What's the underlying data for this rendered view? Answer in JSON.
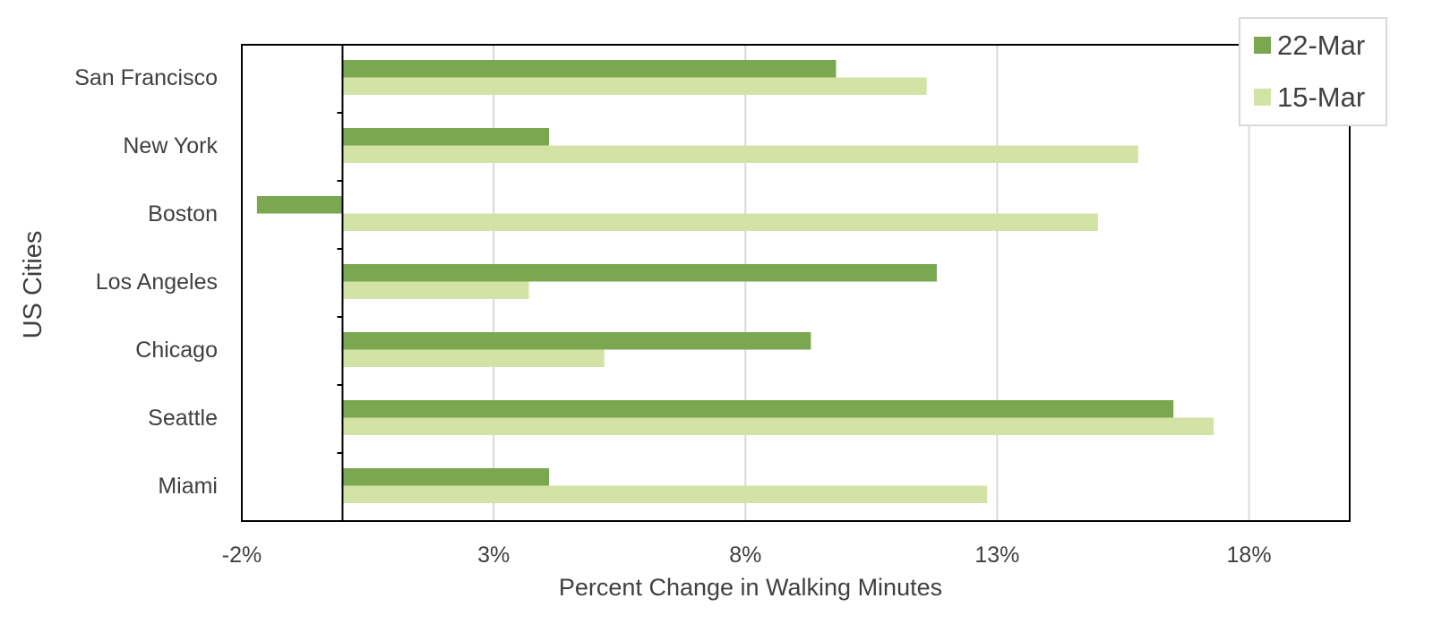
{
  "chart_data": {
    "type": "bar",
    "orientation": "horizontal",
    "categories": [
      "San Francisco",
      "New York",
      "Boston",
      "Los Angeles",
      "Chicago",
      "Seattle",
      "Miami"
    ],
    "series": [
      {
        "name": "22-Mar",
        "color": "#7aa750",
        "values": [
          9.8,
          4.1,
          -1.7,
          11.8,
          9.3,
          16.5,
          4.1
        ]
      },
      {
        "name": "15-Mar",
        "color": "#d3e3a6",
        "values": [
          11.6,
          15.8,
          15.0,
          3.7,
          5.2,
          17.3,
          12.8
        ]
      }
    ],
    "xlabel": "Percent Change in Walking Minutes",
    "ylabel": "US Cities",
    "xlim": [
      -2,
      20
    ],
    "xticks": [
      -2,
      3,
      8,
      13,
      18
    ],
    "xtick_labels": [
      "-2%",
      "3%",
      "8%",
      "13%",
      "18%"
    ],
    "grid": "vertical",
    "legend_position": "top-right",
    "colors": {
      "series_22_mar": "#7aa750",
      "series_15_mar": "#d3e3a6",
      "gridline": "#d9d9d9",
      "axis": "#000000",
      "text": "#404040"
    }
  }
}
